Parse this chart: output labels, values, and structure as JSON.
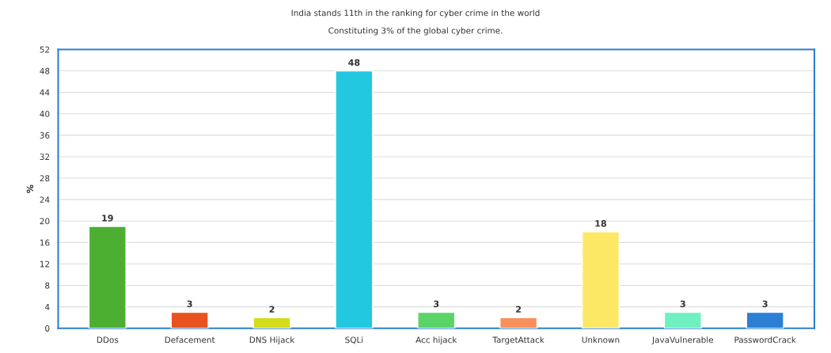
{
  "chart_data": {
    "type": "bar",
    "title": "India stands 11th in the ranking for cyber crime in the world",
    "subtitle": "Constituting 3% of the global cyber crime.",
    "ylabel": "%",
    "categories": [
      "DDos",
      "Defacement",
      "DNS Hijack",
      "SQLi",
      "Acc hijack",
      "TargetAttack",
      "Unknown",
      "JavaVulnerable",
      "PasswordCrack"
    ],
    "values": [
      19,
      3,
      2,
      48,
      3,
      2,
      18,
      3,
      3
    ],
    "colors": [
      "#4caf32",
      "#e8531f",
      "#d4dc1c",
      "#22c8e0",
      "#5ad466",
      "#f7905a",
      "#fde866",
      "#6ff0c0",
      "#2d7fd4"
    ],
    "ylim": [
      0,
      52
    ],
    "yticks": [
      0,
      4,
      8,
      12,
      16,
      20,
      24,
      28,
      32,
      36,
      40,
      44,
      48,
      52
    ],
    "grid": "y",
    "data_labels": true
  }
}
